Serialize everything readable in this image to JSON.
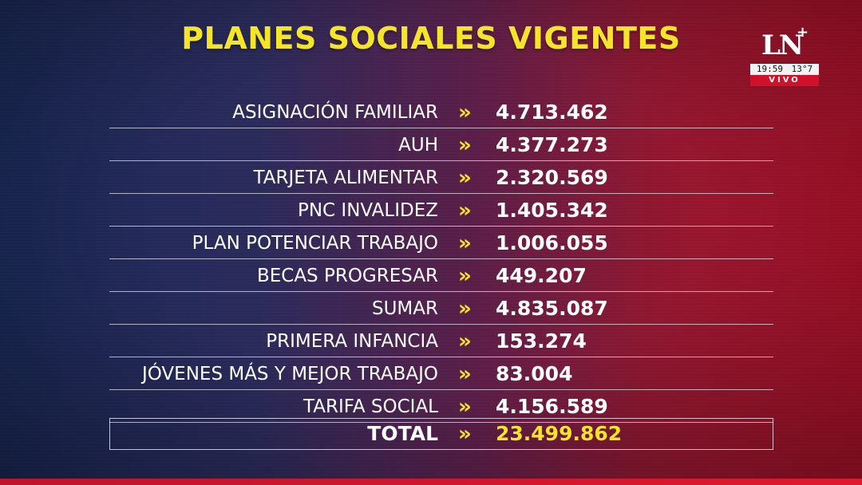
{
  "title": "PLANES SOCIALES VIGENTES",
  "logo": {
    "mark": "LN",
    "plus": "+",
    "time": "19:59",
    "temperature": "13°7",
    "live": "VIVO"
  },
  "separator_glyph": "»",
  "rows": [
    {
      "label": "ASIGNACIÓN FAMILIAR",
      "value": "4.713.462"
    },
    {
      "label": "AUH",
      "value": "4.377.273"
    },
    {
      "label": "TARJETA ALIMENTAR",
      "value": "2.320.569"
    },
    {
      "label": "PNC INVALIDEZ",
      "value": "1.405.342"
    },
    {
      "label": "PLAN POTENCIAR TRABAJO",
      "value": "1.006.055"
    },
    {
      "label": "BECAS PROGRESAR",
      "value": "449.207"
    },
    {
      "label": "SUMAR",
      "value": "4.835.087"
    },
    {
      "label": "PRIMERA INFANCIA",
      "value": "153.274"
    },
    {
      "label": "JÓVENES MÁS Y MEJOR TRABAJO",
      "value": "83.004"
    },
    {
      "label": "TARIFA SOCIAL",
      "value": "4.156.589"
    }
  ],
  "total": {
    "label": "TOTAL",
    "value": "23.499.862"
  },
  "colors": {
    "accent_yellow": "#f5e52a",
    "live_red": "#d0112a"
  }
}
